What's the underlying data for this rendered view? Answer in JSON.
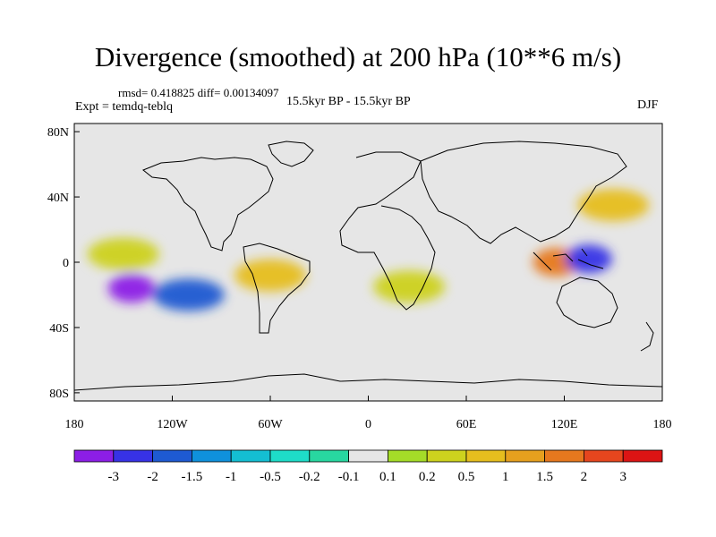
{
  "title": "Divergence (smoothed) at 200 hPa (10**6 m/s)",
  "stats": "rmsd= 0.418825 diff= 0.00134097",
  "experiment": "Expt = temdq-teblq",
  "period": "15.5kyr BP - 15.5kyr BP",
  "season": "DJF",
  "chart_data": {
    "type": "heatmap",
    "title": "Divergence (smoothed) at 200 hPa (10**6 m/s)",
    "x_range": [
      -180,
      180
    ],
    "y_range": [
      -85,
      85
    ],
    "x_ticks": [
      {
        "value": -180,
        "label": "180"
      },
      {
        "value": -120,
        "label": "120W"
      },
      {
        "value": -60,
        "label": "60W"
      },
      {
        "value": 0,
        "label": "0"
      },
      {
        "value": 60,
        "label": "60E"
      },
      {
        "value": 120,
        "label": "120E"
      },
      {
        "value": 180,
        "label": "180"
      }
    ],
    "y_ticks": [
      {
        "value": 80,
        "label": "80N"
      },
      {
        "value": 40,
        "label": "40N"
      },
      {
        "value": 0,
        "label": "0"
      },
      {
        "value": -40,
        "label": "40S"
      },
      {
        "value": -80,
        "label": "80S"
      }
    ],
    "colorbar": {
      "colors": [
        "#8c1ee6",
        "#3732e6",
        "#1e5ad2",
        "#0f91dc",
        "#14bed2",
        "#1edcc8",
        "#28d7a0",
        "#e6e6e6",
        "#a5dc28",
        "#cdd21e",
        "#e6be1e",
        "#e6a01e",
        "#e6781e",
        "#e6461e",
        "#dc1414"
      ],
      "labels": [
        "-3",
        "-2",
        "-1.5",
        "-1",
        "-0.5",
        "-0.2",
        "-0.1",
        "0.1",
        "0.2",
        "0.5",
        "1",
        "1.5",
        "2",
        "3"
      ]
    },
    "features": [
      {
        "name": "strong convergence minimum, eastern South Pacific",
        "lon": -145,
        "lat": -16,
        "value": -3
      },
      {
        "name": "convergence band, South Pacific",
        "lon": -110,
        "lat": -20,
        "value": -1.5
      },
      {
        "name": "divergence maximum, Maritime Continent",
        "lon": 115,
        "lat": 0,
        "value": 2
      },
      {
        "name": "convergence minimum, western Pacific",
        "lon": 135,
        "lat": 2,
        "value": -2
      },
      {
        "name": "divergence, South America",
        "lon": -60,
        "lat": -8,
        "value": 1
      },
      {
        "name": "divergence, southern Africa",
        "lon": 25,
        "lat": -15,
        "value": 0.5
      },
      {
        "name": "divergence, North Pacific",
        "lon": 150,
        "lat": 35,
        "value": 1
      },
      {
        "name": "divergence, central Pacific ITCZ",
        "lon": -150,
        "lat": 5,
        "value": 0.5
      }
    ]
  }
}
